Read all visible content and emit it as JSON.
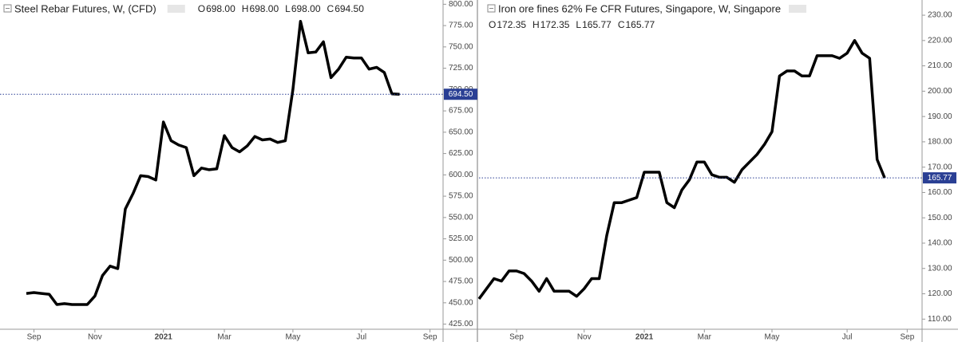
{
  "chart_data": [
    {
      "type": "line",
      "title": "Steel Rebar Futures, W, (CFD)",
      "ohlc": {
        "labels": [
          "O",
          "H",
          "L",
          "C"
        ],
        "values": [
          698,
          698,
          698,
          694.5
        ],
        "value_labels": [
          "698.00",
          "698.00",
          "698.00",
          "694.50"
        ]
      },
      "categories": [
        null,
        "Sep",
        null,
        null,
        null,
        null,
        null,
        null,
        null,
        "Nov",
        null,
        null,
        null,
        null,
        null,
        null,
        null,
        null,
        "2021",
        null,
        null,
        null,
        null,
        null,
        null,
        null,
        "Mar",
        null,
        null,
        null,
        null,
        null,
        null,
        null,
        null,
        "May",
        null,
        null,
        null,
        null,
        null,
        null,
        null,
        null,
        "Jul",
        null,
        null,
        null,
        null,
        null,
        null,
        null,
        null,
        "Sep",
        null
      ],
      "series": [
        {
          "name": null,
          "color": "#000000",
          "values": [
            461,
            462,
            461,
            460,
            448,
            449,
            448,
            448,
            448,
            458,
            482,
            493,
            490,
            560,
            578,
            599,
            598,
            594,
            662,
            640,
            635,
            632,
            599,
            608,
            606,
            607,
            646,
            632,
            627,
            634,
            645,
            641,
            642,
            638,
            640,
            700,
            780,
            743,
            744,
            756,
            714,
            724,
            738,
            737,
            737,
            724,
            726,
            720,
            695,
            694.5,
            null,
            null,
            null,
            null,
            null
          ]
        }
      ],
      "last_value_label": "694.50",
      "price_line_color": "#2a3f94",
      "ylim": [
        419,
        805
      ],
      "yticks": [
        {
          "value": 425,
          "label": "425.00"
        },
        {
          "value": 450,
          "label": "450.00"
        },
        {
          "value": 475,
          "label": "475.00"
        },
        {
          "value": 500,
          "label": "500.00"
        },
        {
          "value": 525,
          "label": "525.00"
        },
        {
          "value": 550,
          "label": "550.00"
        },
        {
          "value": 575,
          "label": "575.00"
        },
        {
          "value": 600,
          "label": "600.00"
        },
        {
          "value": 625,
          "label": "625.00"
        },
        {
          "value": 650,
          "label": "650.00"
        },
        {
          "value": 675,
          "label": "675.00"
        },
        {
          "value": 700,
          "label": "700.00"
        },
        {
          "value": 725,
          "label": "725.00"
        },
        {
          "value": 750,
          "label": "750.00"
        },
        {
          "value": 775,
          "label": "775.00"
        },
        {
          "value": 800,
          "label": "800.00"
        }
      ]
    },
    {
      "type": "line",
      "title": "Iron ore fines 62% Fe CFR Futures, Singapore, W, Singapore",
      "ohlc": {
        "labels": [
          "O",
          "H",
          "L",
          "C"
        ],
        "values": [
          172.35,
          172.35,
          165.77,
          165.77
        ],
        "value_labels": [
          "172.35",
          "172.35",
          "165.77",
          "165.77"
        ]
      },
      "categories": [
        null,
        null,
        null,
        null,
        null,
        "Sep",
        null,
        null,
        null,
        null,
        null,
        null,
        null,
        null,
        "Nov",
        null,
        null,
        null,
        null,
        null,
        null,
        null,
        "2021",
        null,
        null,
        null,
        null,
        null,
        null,
        null,
        "Mar",
        null,
        null,
        null,
        null,
        null,
        null,
        null,
        null,
        "May",
        null,
        null,
        null,
        null,
        null,
        null,
        null,
        null,
        null,
        "Jul",
        null,
        null,
        null,
        null,
        null,
        null,
        null,
        "Sep"
      ],
      "series": [
        {
          "name": null,
          "color": "#000000",
          "values": [
            118,
            122,
            126,
            125,
            129,
            129,
            128,
            125,
            121,
            126,
            121,
            121,
            121,
            119,
            122,
            126,
            126,
            143,
            156,
            156,
            157,
            158,
            168,
            168,
            168,
            156,
            154,
            161,
            165,
            172,
            172,
            167,
            166,
            166,
            164,
            169,
            172,
            175,
            179,
            184,
            206,
            208,
            208,
            206,
            206,
            214,
            214,
            214,
            213,
            215,
            220,
            215,
            213,
            173,
            165.77,
            null,
            null,
            null
          ]
        }
      ],
      "last_value_label": "165.77",
      "price_line_color": "#2a3f94",
      "ylim": [
        106,
        236
      ],
      "yticks": [
        {
          "value": 110,
          "label": "110.00"
        },
        {
          "value": 120,
          "label": "120.00"
        },
        {
          "value": 130,
          "label": "130.00"
        },
        {
          "value": 140,
          "label": "140.00"
        },
        {
          "value": 150,
          "label": "150.00"
        },
        {
          "value": 160,
          "label": "160.00"
        },
        {
          "value": 170,
          "label": "170.00"
        },
        {
          "value": 180,
          "label": "180.00"
        },
        {
          "value": 190,
          "label": "190.00"
        },
        {
          "value": 200,
          "label": "200.00"
        },
        {
          "value": 210,
          "label": "210.00"
        },
        {
          "value": 220,
          "label": "220.00"
        },
        {
          "value": 230,
          "label": "230.00"
        }
      ]
    }
  ]
}
